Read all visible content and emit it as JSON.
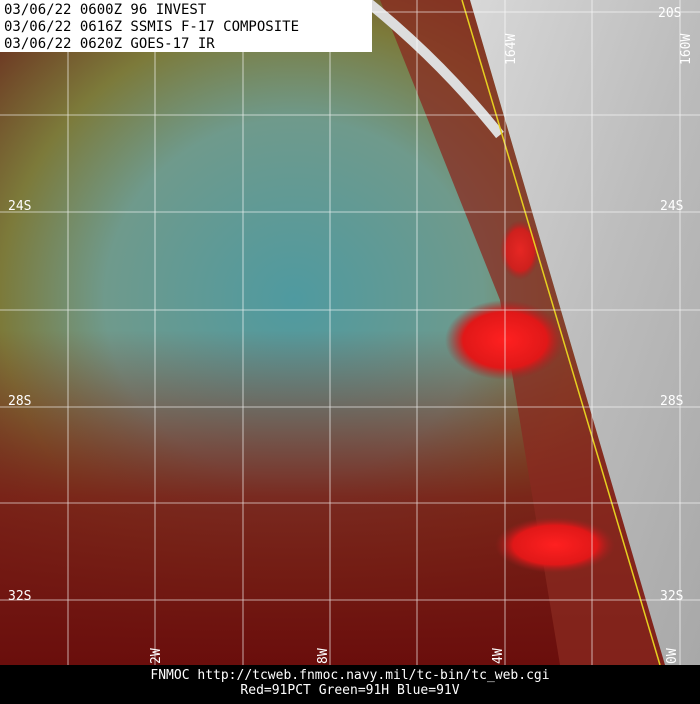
{
  "header": {
    "lines": [
      "03/06/22 0600Z  96 INVEST",
      "03/06/22 0616Z  SSMIS F-17 COMPOSITE",
      "03/06/22 0620Z  GOES-17 IR"
    ]
  },
  "latitude_labels": [
    "20S",
    "24S",
    "28S",
    "32S"
  ],
  "longitude_labels": {
    "top": [
      "164W",
      "160W"
    ],
    "bottom": [
      "2W",
      "8W",
      "4W",
      "0W"
    ]
  },
  "footer": {
    "lines": [
      "FNMOC  http://tcweb.fnmoc.navy.mil/tc-bin/tc_web.cgi",
      "Red=91PCT  Green=91H  Blue=91V"
    ]
  }
}
